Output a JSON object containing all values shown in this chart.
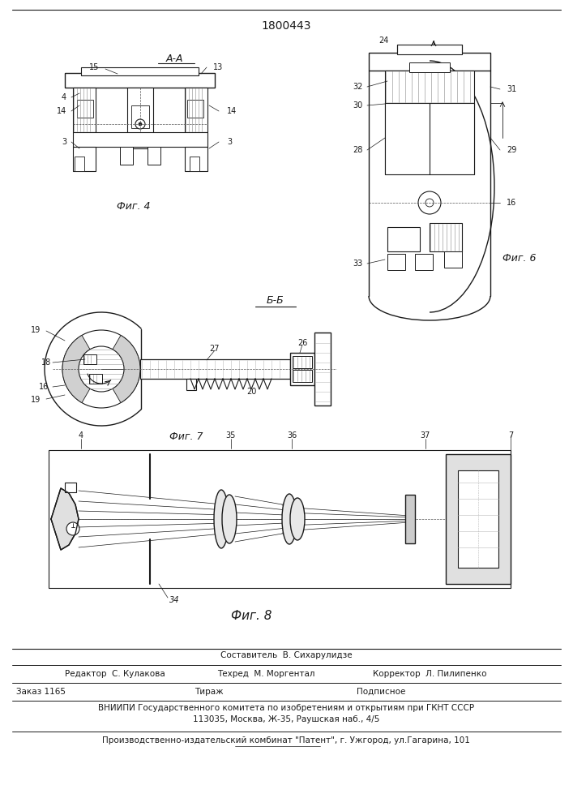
{
  "title": "1800443",
  "fig4_label": "Фиг. 4",
  "fig6_label": "Фиг. 6",
  "fig7_label": "Фиг. 7",
  "fig8_label": "Фиг. 8",
  "section_aa": "А-А",
  "section_bb": "Б-Б",
  "footer_line1": "Составитель  В. Сихарулидзе",
  "footer_line2_left": "Редактор  С. Кулакова",
  "footer_line2_mid": "Техред  М. Моргентал",
  "footer_line2_right": "Корректор  Л. Пилипенко",
  "footer_line3_left": "Заказ 1165",
  "footer_line3_mid": "Тираж",
  "footer_line3_right": "Подписное",
  "footer_line4": "ВНИИПИ Государственного комитета по изобретениям и открытиям при ГКНТ СССР",
  "footer_line5": "113035, Москва, Ж-35, Раушская наб., 4/5",
  "footer_line6": "Производственно-издательский комбинат \"Патент\", г. Ужгород, ул.Гагарина, 101",
  "bg_color": "#ffffff",
  "line_color": "#1a1a1a"
}
